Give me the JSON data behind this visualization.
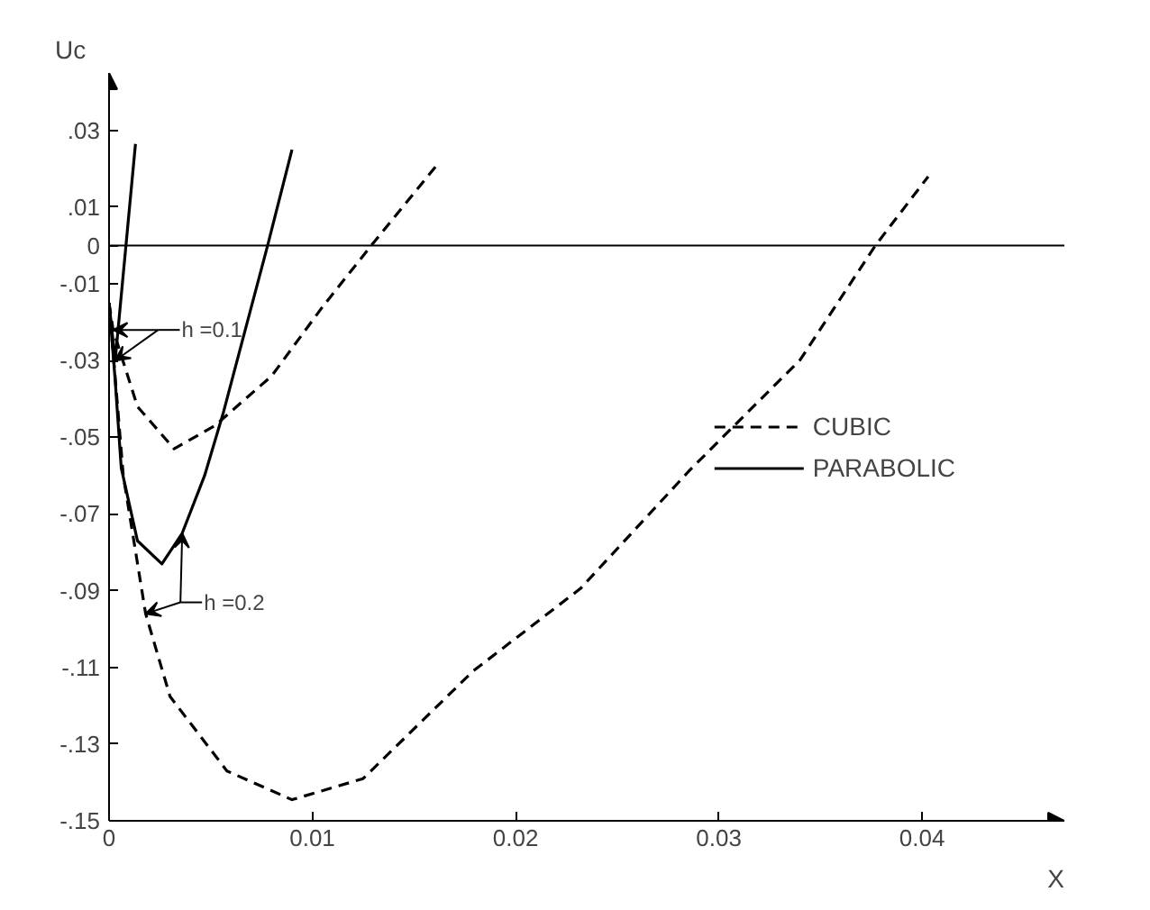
{
  "chart_data": {
    "type": "line",
    "xlabel": "X",
    "ylabel": "Uc",
    "xlim": [
      0,
      0.047
    ],
    "ylim": [
      -0.15,
      0.045
    ],
    "xticks": [
      0,
      0.01,
      0.02,
      0.03,
      0.04
    ],
    "yticks": [
      {
        "value": 0.03,
        "label": ".03"
      },
      {
        "value": 0.01,
        "label": ".01"
      },
      0,
      {
        "value": -0.01,
        "label": "-.01"
      },
      {
        "value": -0.03,
        "label": "-.03"
      },
      {
        "value": -0.05,
        "label": "-.05"
      },
      {
        "value": -0.07,
        "label": "-.07"
      },
      {
        "value": -0.09,
        "label": "-.09"
      },
      {
        "value": -0.11,
        "label": "-.11"
      },
      {
        "value": -0.13,
        "label": "-.13"
      },
      {
        "value": -0.15,
        "label": "-.15"
      }
    ],
    "grid": false,
    "legend": "right",
    "series": [
      {
        "name": "CUBIC",
        "color": "#000000",
        "line_style": "dashed",
        "x": [
          0,
          0.0002,
          0.0014,
          0.0032,
          0.0052,
          0.008,
          0.0105,
          0.0129,
          0.0161
        ],
        "values": [
          -0.015,
          -0.022,
          -0.042,
          -0.053,
          -0.047,
          -0.034,
          -0.016,
          0,
          0.0208
        ]
      },
      {
        "name": "PARABOLIC",
        "color": "#000000",
        "line_style": "solid",
        "x": [
          0,
          0.0003,
          0.0013
        ],
        "values": [
          -0.015,
          -0.03,
          0.0265
        ]
      },
      {
        "color": "#000000",
        "line_style": "dashed",
        "x": [
          0,
          0.0007,
          0.0018,
          0.003,
          0.0058,
          0.009,
          0.0125,
          0.0179,
          0.0232,
          0.0286,
          0.034,
          0.0377,
          0.0403
        ],
        "values": [
          -0.015,
          -0.06,
          -0.096,
          -0.1176,
          -0.137,
          -0.1445,
          -0.139,
          -0.111,
          -0.0894,
          -0.0584,
          -0.0298,
          0,
          0.018
        ]
      },
      {
        "color": "#000000",
        "line_style": "solid",
        "x": [
          0,
          0.0003,
          0.0006,
          0.0014,
          0.0026,
          0.0036,
          0.0047,
          0.0056,
          0.0067,
          0.0078,
          0.009
        ],
        "values": [
          -0.015,
          -0.035,
          -0.058,
          -0.077,
          -0.083,
          -0.075,
          -0.06,
          -0.044,
          -0.022,
          0,
          0.025
        ]
      }
    ],
    "ref_lines": [
      {
        "axis": "y",
        "value": 0
      }
    ],
    "annotations": [
      {
        "text": "h =0.1",
        "x": 0.0002,
        "y": -0.022
      },
      {
        "text": "h =0.2",
        "x": 0.0036,
        "y": -0.075
      }
    ]
  }
}
